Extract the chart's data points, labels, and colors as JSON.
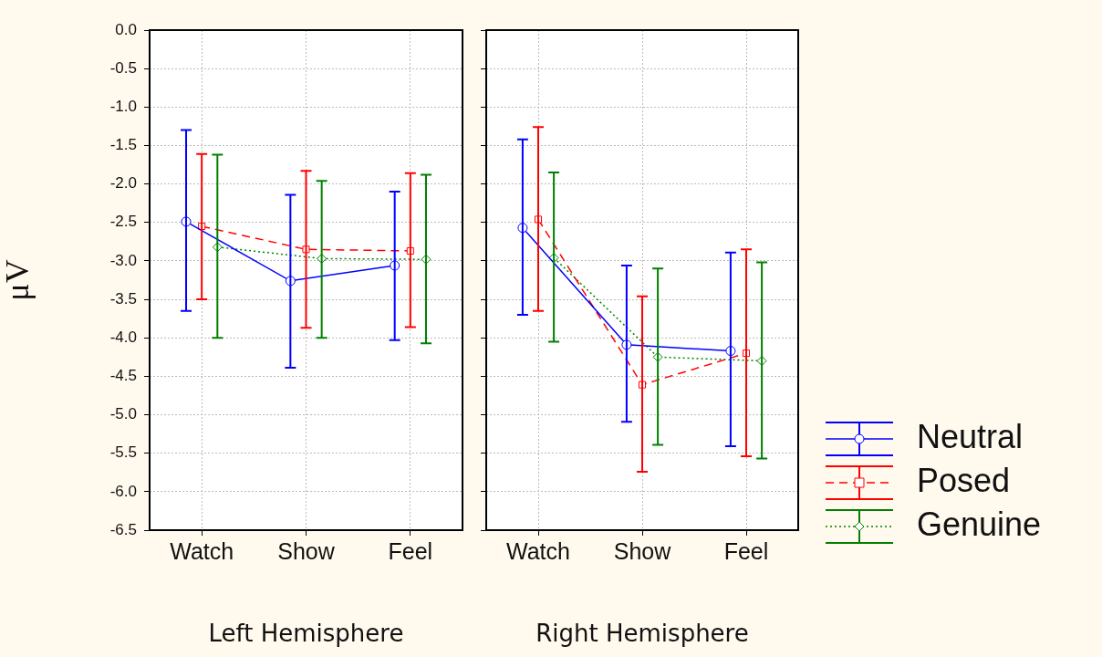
{
  "chart_data": [
    {
      "type": "line",
      "xlabel": "Left Hemisphere",
      "ylabel": "μV",
      "categories": [
        "Watch",
        "Show",
        "Feel"
      ],
      "series": [
        {
          "color": "#0000ff",
          "marker": "circle",
          "line_style": "solid",
          "values": [
            -2.49,
            -3.26,
            -3.06
          ],
          "errors": [
            [
              -3.65,
              -1.3
            ],
            [
              -4.39,
              -2.14
            ],
            [
              -4.03,
              -2.1
            ]
          ]
        },
        {
          "color": "#ff0000",
          "marker": "square",
          "line_style": "dashed",
          "values": [
            -2.55,
            -2.85,
            -2.87
          ],
          "errors": [
            [
              -3.5,
              -1.61
            ],
            [
              -3.87,
              -1.83
            ],
            [
              -3.86,
              -1.86
            ]
          ]
        },
        {
          "color": "#008000",
          "marker": "diamond",
          "line_style": "dotted",
          "values": [
            -2.82,
            -2.97,
            -2.98
          ],
          "errors": [
            [
              -4.0,
              -1.62
            ],
            [
              -4.0,
              -1.96
            ],
            [
              -4.07,
              -1.88
            ]
          ]
        }
      ],
      "ylim": [
        -6.5,
        0
      ],
      "yticks": [
        {
          "value": 0,
          "label": "0.0"
        },
        -0.5,
        {
          "value": -1,
          "label": "-1.0"
        },
        -1.5,
        {
          "value": -2,
          "label": "-2.0"
        },
        -2.5,
        {
          "value": -3,
          "label": "-3.0"
        },
        -3.5,
        {
          "value": -4,
          "label": "-4.0"
        },
        -4.5,
        {
          "value": -5,
          "label": "-5.0"
        },
        -5.5,
        {
          "value": -6,
          "label": "-6.0"
        },
        -6.5
      ],
      "grid": true
    },
    {
      "type": "line",
      "xlabel": "Right Hemisphere",
      "categories": [
        "Watch",
        "Show",
        "Feel"
      ],
      "series": [
        {
          "name": "Neutral",
          "color": "#0000ff",
          "marker": "circle",
          "line_style": "solid",
          "values": [
            -2.57,
            -4.09,
            -4.17
          ],
          "errors": [
            [
              -3.7,
              -1.42
            ],
            [
              -5.09,
              -3.06
            ],
            [
              -5.41,
              -2.89
            ]
          ]
        },
        {
          "name": "Posed",
          "color": "#ff0000",
          "marker": "square",
          "line_style": "dashed",
          "values": [
            -2.46,
            -4.61,
            -4.2
          ],
          "errors": [
            [
              -3.65,
              -1.26
            ],
            [
              -5.74,
              -3.46
            ],
            [
              -5.54,
              -2.85
            ]
          ]
        },
        {
          "name": "Genuine",
          "color": "#008000",
          "marker": "diamond",
          "line_style": "dotted",
          "values": [
            -2.96,
            -4.25,
            -4.3
          ],
          "errors": [
            [
              -4.05,
              -1.85
            ],
            [
              -5.39,
              -3.1
            ],
            [
              -5.57,
              -3.02
            ]
          ]
        }
      ],
      "ylim": [
        -6.5,
        0
      ],
      "yticks": [
        0,
        -0.5,
        -1,
        -1.5,
        -2,
        -2.5,
        -3,
        -3.5,
        -4,
        -4.5,
        -5,
        -5.5,
        -6,
        -6.5
      ],
      "grid": true,
      "legend": "bottom right",
      "tick_labels": "x"
    }
  ]
}
